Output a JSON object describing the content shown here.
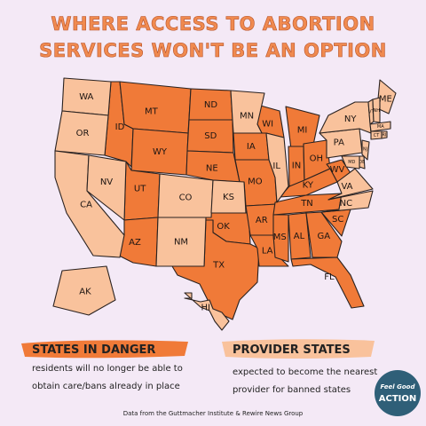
{
  "title": [
    "WHERE ACCESS TO ABORTION",
    "SERVICES WON'T BE AN OPTION"
  ],
  "legend": [
    {
      "label": "STATES IN DANGER",
      "color": "#f07a38",
      "description": [
        "residents will no longer be able to",
        "obtain care/bans already in place"
      ],
      "states": [
        "ID",
        "MT",
        "WY",
        "UT",
        "AZ",
        "ND",
        "SD",
        "NE",
        "OK",
        "TX",
        "IA",
        "MO",
        "AR",
        "LA",
        "WI",
        "MI",
        "IN",
        "OH",
        "KY",
        "TN",
        "MS",
        "AL",
        "GA",
        "FL",
        "SC",
        "WV"
      ]
    },
    {
      "label": "PROVIDER STATES",
      "color": "#f9c29c",
      "description": [
        "expected to become the nearest",
        "provider for banned states"
      ],
      "states": [
        "WA",
        "OR",
        "CA",
        "NV",
        "CO",
        "NM",
        "KS",
        "MN",
        "IL",
        "NC",
        "VA",
        "PA",
        "NY",
        "ME",
        "VT",
        "NH",
        "MA",
        "CT",
        "RI",
        "NJ",
        "DE",
        "MD",
        "AK",
        "HI"
      ]
    }
  ],
  "source": "Data from the Guttmacher Institute & Rewire News Group",
  "logo": [
    "Feel Good",
    "ACTION"
  ]
}
